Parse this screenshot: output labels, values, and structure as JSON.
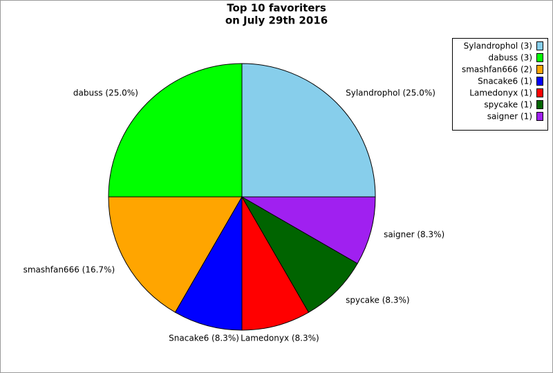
{
  "chart_data": {
    "type": "pie",
    "title": "Top 10 favoriters",
    "subtitle": "on July 29th 2016",
    "categories": [
      "Sylandrophol (3)",
      "dabuss (3)",
      "smashfan666 (2)",
      "Snacake6 (1)",
      "Lamedonyx (1)",
      "spycake (1)",
      "saigner (1)"
    ],
    "values": [
      3,
      3,
      2,
      1,
      1,
      1,
      1
    ],
    "value_labels": [
      "Sylandrophol (25.0%)",
      "dabuss (25.0%)",
      "smashfan666 (16.7%)",
      "Snacake6 (8.3%)",
      "Lamedonyx (8.3%)",
      "spycake (8.3%)",
      "saigner (8.3%)"
    ],
    "colors": [
      "#87ceeb",
      "#00ff00",
      "#ffa500",
      "#0000ff",
      "#ff0000",
      "#006400",
      "#a020f0"
    ],
    "legend": "top-right"
  }
}
